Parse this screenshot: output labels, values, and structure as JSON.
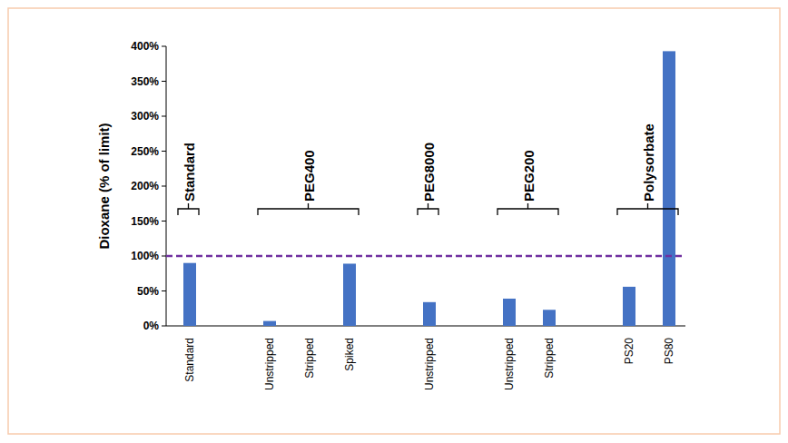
{
  "chart_data": {
    "type": "bar",
    "y_label": "Dioxane (% of limit)",
    "categories": [
      "Standard",
      "Unstripped",
      "Stripped",
      "Spiked",
      "Unstripped",
      "Unstripped",
      "Stripped",
      "PS20",
      "PS80"
    ],
    "values": [
      90,
      7,
      0,
      89,
      34,
      39,
      23,
      56,
      393
    ],
    "groups": [
      {
        "label": "Standard",
        "count": 1
      },
      {
        "label": "PEG400",
        "count": 3
      },
      {
        "label": "PEG8000",
        "count": 1
      },
      {
        "label": "PEG200",
        "count": 2
      },
      {
        "label": "Polysorbate",
        "count": 2
      }
    ],
    "limit": 100,
    "limit_color": "#7030a0",
    "color": "#4472c4",
    "ylim": [
      0,
      400
    ],
    "yticks": [
      {
        "value": 0,
        "label": "0%"
      },
      {
        "value": 50,
        "label": "50%"
      },
      {
        "value": 100,
        "label": "100%"
      },
      {
        "value": 150,
        "label": "150%"
      },
      {
        "value": 200,
        "label": "200%"
      },
      {
        "value": 250,
        "label": "250%"
      },
      {
        "value": 300,
        "label": "300%"
      },
      {
        "value": 350,
        "label": "350%"
      },
      {
        "value": 400,
        "label": "400%"
      }
    ],
    "grid": false
  }
}
